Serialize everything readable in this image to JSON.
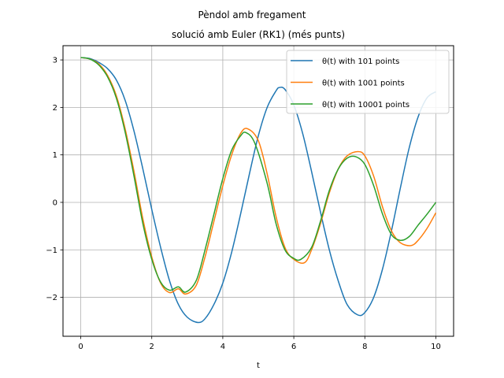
{
  "chart_data": {
    "type": "line",
    "title": "Pèndol amb fregament",
    "subtitle": "solució amb Euler (RK1) (més punts)",
    "xlabel": "t",
    "ylabel": "",
    "xlim": [
      -0.5,
      10.5
    ],
    "ylim": [
      -2.82,
      3.3
    ],
    "xticks": [
      0,
      2,
      4,
      6,
      8,
      10
    ],
    "yticks": [
      -2,
      -1,
      0,
      1,
      2,
      3
    ],
    "grid": true,
    "legend_position": "top-right",
    "series": [
      {
        "name": "θ(t) with 101 points",
        "color": "#1f77b4",
        "x": [
          0,
          0.25,
          0.5,
          0.75,
          1.0,
          1.25,
          1.5,
          1.75,
          2.0,
          2.25,
          2.5,
          2.75,
          3.0,
          3.3,
          3.5,
          3.75,
          4.0,
          4.25,
          4.5,
          4.75,
          5.0,
          5.25,
          5.5,
          5.6,
          5.75,
          6.0,
          6.25,
          6.5,
          6.75,
          7.0,
          7.25,
          7.5,
          7.8,
          8.0,
          8.25,
          8.5,
          8.75,
          9.0,
          9.25,
          9.5,
          9.75,
          10.0
        ],
        "y": [
          3.05,
          3.03,
          2.95,
          2.82,
          2.58,
          2.15,
          1.5,
          0.7,
          -0.15,
          -0.95,
          -1.65,
          -2.15,
          -2.42,
          -2.53,
          -2.45,
          -2.15,
          -1.7,
          -1.05,
          -0.25,
          0.6,
          1.4,
          2.0,
          2.35,
          2.42,
          2.38,
          2.05,
          1.45,
          0.65,
          -0.2,
          -1.0,
          -1.65,
          -2.15,
          -2.37,
          -2.32,
          -2.0,
          -1.4,
          -0.6,
          0.3,
          1.15,
          1.8,
          2.2,
          2.33
        ]
      },
      {
        "name": "θ(t) with 1001 points",
        "color": "#ff7f0e",
        "x": [
          0,
          0.25,
          0.5,
          0.75,
          1.0,
          1.25,
          1.5,
          1.75,
          2.0,
          2.25,
          2.5,
          2.75,
          2.95,
          3.25,
          3.5,
          3.75,
          4.0,
          4.25,
          4.5,
          4.7,
          5.0,
          5.25,
          5.5,
          5.75,
          6.0,
          6.3,
          6.5,
          6.75,
          7.0,
          7.25,
          7.5,
          7.8,
          8.0,
          8.25,
          8.5,
          8.75,
          9.0,
          9.3,
          9.5,
          9.75,
          10.0
        ],
        "y": [
          3.05,
          3.02,
          2.92,
          2.68,
          2.25,
          1.55,
          0.65,
          -0.35,
          -1.15,
          -1.7,
          -1.9,
          -1.82,
          -1.93,
          -1.75,
          -1.15,
          -0.4,
          0.35,
          1.0,
          1.45,
          1.55,
          1.3,
          0.6,
          -0.3,
          -0.95,
          -1.2,
          -1.27,
          -1.0,
          -0.45,
          0.2,
          0.7,
          0.98,
          1.07,
          0.98,
          0.55,
          -0.1,
          -0.6,
          -0.85,
          -0.91,
          -0.8,
          -0.55,
          -0.22
        ]
      },
      {
        "name": "θ(t) with 10001 points",
        "color": "#2ca02c",
        "x": [
          0,
          0.25,
          0.5,
          0.75,
          1.0,
          1.25,
          1.5,
          1.75,
          2.0,
          2.25,
          2.5,
          2.75,
          2.95,
          3.25,
          3.5,
          3.75,
          4.0,
          4.25,
          4.5,
          4.65,
          4.9,
          5.25,
          5.5,
          5.75,
          6.0,
          6.2,
          6.5,
          6.75,
          7.0,
          7.25,
          7.5,
          7.75,
          8.0,
          8.25,
          8.5,
          8.75,
          9.0,
          9.25,
          9.5,
          9.75,
          10.0
        ],
        "y": [
          3.05,
          3.02,
          2.9,
          2.65,
          2.2,
          1.48,
          0.55,
          -0.45,
          -1.2,
          -1.68,
          -1.85,
          -1.78,
          -1.89,
          -1.65,
          -1.0,
          -0.25,
          0.5,
          1.1,
          1.4,
          1.47,
          1.25,
          0.4,
          -0.45,
          -1.0,
          -1.18,
          -1.2,
          -0.95,
          -0.4,
          0.25,
          0.7,
          0.93,
          0.96,
          0.8,
          0.35,
          -0.25,
          -0.68,
          -0.8,
          -0.72,
          -0.48,
          -0.25,
          0.0
        ]
      }
    ]
  }
}
